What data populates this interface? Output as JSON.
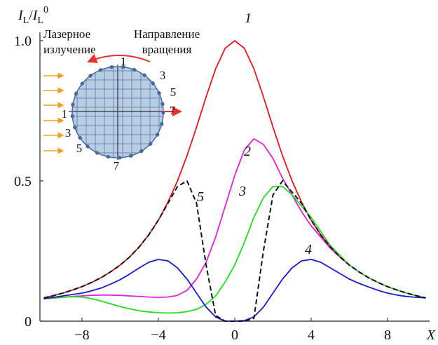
{
  "chart_data": {
    "type": "line",
    "ylabel": [
      "I",
      "L",
      "/",
      "I",
      "L",
      "0"
    ],
    "xlabel": "X",
    "x": [
      -10,
      -9.5,
      -9,
      -8.5,
      -8,
      -7.5,
      -7,
      -6.5,
      -6,
      -5.5,
      -5,
      -4.5,
      -4,
      -3.5,
      -3,
      -2.5,
      -2,
      -1.5,
      -1,
      -0.5,
      0,
      0.5,
      1,
      1.5,
      2,
      2.5,
      3,
      3.5,
      4,
      4.5,
      5,
      5.5,
      6,
      6.5,
      7,
      7.5,
      8,
      8.5,
      9,
      9.5,
      10
    ],
    "series": [
      {
        "name": "1",
        "color": "#e8141c",
        "values": [
          0.083,
          0.091,
          0.1,
          0.111,
          0.123,
          0.138,
          0.155,
          0.176,
          0.2,
          0.229,
          0.265,
          0.308,
          0.36,
          0.424,
          0.5,
          0.59,
          0.692,
          0.8,
          0.9,
          0.973,
          1,
          0.973,
          0.9,
          0.8,
          0.692,
          0.59,
          0.5,
          0.424,
          0.36,
          0.308,
          0.265,
          0.229,
          0.2,
          0.176,
          0.155,
          0.138,
          0.123,
          0.111,
          0.1,
          0.091,
          0.083
        ]
      },
      {
        "name": "2",
        "color": "#e020e0",
        "values": [
          0.08,
          0.082,
          0.085,
          0.088,
          0.09,
          0.092,
          0.093,
          0.093,
          0.092,
          0.09,
          0.088,
          0.086,
          0.085,
          0.086,
          0.092,
          0.11,
          0.15,
          0.21,
          0.3,
          0.41,
          0.52,
          0.61,
          0.65,
          0.63,
          0.58,
          0.51,
          0.45,
          0.39,
          0.34,
          0.3,
          0.26,
          0.229,
          0.2,
          0.176,
          0.155,
          0.138,
          0.123,
          0.111,
          0.1,
          0.091,
          0.083
        ]
      },
      {
        "name": "3",
        "color": "#22dd22",
        "values": [
          0.08,
          0.083,
          0.085,
          0.087,
          0.086,
          0.08,
          0.072,
          0.062,
          0.052,
          0.044,
          0.037,
          0.033,
          0.03,
          0.029,
          0.03,
          0.034,
          0.042,
          0.06,
          0.09,
          0.14,
          0.2,
          0.28,
          0.37,
          0.44,
          0.48,
          0.48,
          0.45,
          0.41,
          0.37,
          0.32,
          0.27,
          0.235,
          0.2,
          0.176,
          0.155,
          0.138,
          0.123,
          0.111,
          0.1,
          0.091,
          0.083
        ]
      },
      {
        "name": "4",
        "color": "#1a1acc",
        "values": [
          0.08,
          0.085,
          0.09,
          0.095,
          0.1,
          0.108,
          0.118,
          0.132,
          0.148,
          0.168,
          0.19,
          0.21,
          0.22,
          0.215,
          0.19,
          0.15,
          0.1,
          0.05,
          0.015,
          0,
          0,
          0.002,
          0.015,
          0.05,
          0.1,
          0.15,
          0.19,
          0.215,
          0.22,
          0.21,
          0.19,
          0.17,
          0.15,
          0.135,
          0.122,
          0.11,
          0.1,
          0.093,
          0.088,
          0.085,
          0.083
        ]
      },
      {
        "name": "5",
        "color": "#111111",
        "dashed": true,
        "values": [
          0.083,
          0.091,
          0.1,
          0.111,
          0.123,
          0.138,
          0.155,
          0.176,
          0.2,
          0.229,
          0.265,
          0.308,
          0.36,
          0.42,
          0.48,
          0.5,
          0.42,
          0.2,
          0.02,
          0,
          0,
          0,
          0.01,
          0.25,
          0.45,
          0.5,
          0.46,
          0.42,
          0.36,
          0.308,
          0.265,
          0.229,
          0.2,
          0.176,
          0.155,
          0.138,
          0.123,
          0.111,
          0.1,
          0.091,
          0.083
        ]
      }
    ],
    "xlim": [
      -10.2,
      10.2
    ],
    "ylim": [
      0,
      1.03
    ],
    "xticks": [
      {
        "value": -8,
        "label": "−8"
      },
      {
        "value": -4,
        "label": "−4"
      },
      0,
      4,
      8
    ],
    "yticks": [
      0,
      0.5,
      {
        "value": 1,
        "label": "1.0"
      }
    ],
    "inset": {
      "laser_label": [
        "Лазерное",
        "излучение"
      ],
      "rotation_label": [
        "Направление",
        "вращения"
      ],
      "numbers": [
        "1",
        "3",
        "5",
        "7",
        "1",
        "3",
        "5",
        "7"
      ]
    }
  }
}
